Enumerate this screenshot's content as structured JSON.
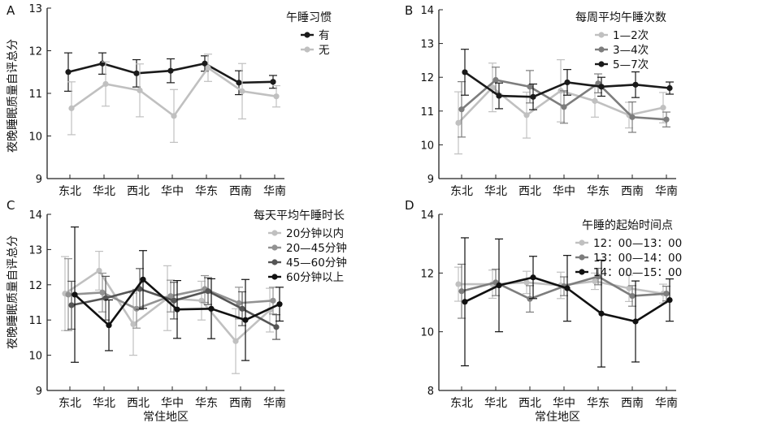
{
  "figure": {
    "y_axis_label": "夜晚睡眠质量自评总分",
    "x_axis_label": "常住地区"
  },
  "chart_data": [
    {
      "panel": "A",
      "type": "line",
      "legend_title": "午睡习惯",
      "categories": [
        "东北",
        "华北",
        "西北",
        "华中",
        "华东",
        "西南",
        "华南"
      ],
      "ylim": [
        9,
        13
      ],
      "yticks": [
        9,
        10,
        11,
        12,
        13
      ],
      "series": [
        {
          "name": "有",
          "color": "#1a1a1a",
          "values": [
            11.5,
            11.7,
            11.47,
            11.53,
            11.7,
            11.25,
            11.27
          ],
          "err": [
            0.45,
            0.25,
            0.32,
            0.28,
            0.18,
            0.28,
            0.15
          ]
        },
        {
          "name": "无",
          "color": "#c0c0c0",
          "values": [
            10.65,
            11.22,
            11.07,
            10.47,
            11.6,
            11.05,
            10.93
          ],
          "err": [
            0.62,
            0.52,
            0.62,
            0.62,
            0.32,
            0.65,
            0.25
          ]
        }
      ]
    },
    {
      "panel": "B",
      "type": "line",
      "legend_title": "每周平均午睡次数",
      "categories": [
        "东北",
        "华北",
        "西北",
        "华中",
        "华东",
        "西南",
        "华南"
      ],
      "ylim": [
        9,
        14
      ],
      "yticks": [
        9,
        10,
        11,
        12,
        13,
        14
      ],
      "series": [
        {
          "name": "1—2次",
          "color": "#c0c0c0",
          "values": [
            10.65,
            11.7,
            10.88,
            11.6,
            11.3,
            10.88,
            11.1
          ],
          "err": [
            0.92,
            0.72,
            0.68,
            0.92,
            0.48,
            0.38,
            0.45
          ]
        },
        {
          "name": "3—4次",
          "color": "#7d7d7d",
          "values": [
            11.05,
            11.92,
            11.72,
            11.12,
            11.82,
            10.82,
            10.75
          ],
          "err": [
            0.82,
            0.38,
            0.48,
            0.48,
            0.28,
            0.45,
            0.22
          ]
        },
        {
          "name": "5—7次",
          "color": "#1a1a1a",
          "values": [
            12.15,
            11.45,
            11.42,
            11.85,
            11.72,
            11.78,
            11.68
          ],
          "err": [
            0.68,
            0.38,
            0.38,
            0.38,
            0.28,
            0.38,
            0.18
          ]
        }
      ]
    },
    {
      "panel": "C",
      "type": "line",
      "legend_title": "每天平均午睡时长",
      "categories": [
        "东北",
        "华北",
        "西北",
        "华中",
        "华东",
        "西南",
        "华南"
      ],
      "ylim": [
        9,
        14
      ],
      "yticks": [
        9,
        10,
        11,
        12,
        13,
        14
      ],
      "series": [
        {
          "name": "20分钟以内",
          "color": "#c0c0c0",
          "values": [
            11.75,
            12.4,
            10.88,
            11.62,
            11.55,
            10.4,
            11.28
          ],
          "err": [
            1.05,
            0.55,
            0.88,
            0.92,
            0.55,
            0.92,
            0.62
          ]
        },
        {
          "name": "20—45分钟",
          "color": "#929292",
          "values": [
            11.72,
            11.78,
            11.32,
            11.68,
            11.88,
            11.48,
            11.55
          ],
          "err": [
            1.02,
            0.55,
            0.55,
            0.45,
            0.38,
            0.45,
            0.38
          ]
        },
        {
          "name": "45—60分钟",
          "color": "#555555",
          "values": [
            11.42,
            11.62,
            11.88,
            11.55,
            11.82,
            11.32,
            10.8
          ],
          "err": [
            0.68,
            0.62,
            0.58,
            0.52,
            0.38,
            0.48,
            0.35
          ]
        },
        {
          "name": "60分钟以上",
          "color": "#111111",
          "values": [
            11.72,
            10.85,
            12.15,
            11.3,
            11.32,
            11.0,
            11.45
          ],
          "err": [
            1.92,
            0.72,
            0.82,
            0.82,
            0.85,
            1.15,
            0.48
          ]
        }
      ]
    },
    {
      "panel": "D",
      "type": "line",
      "legend_title": "午睡的起始时间点",
      "categories": [
        "东北",
        "华北",
        "西北",
        "华中",
        "华东",
        "西南",
        "华南"
      ],
      "ylim": [
        8,
        14
      ],
      "yticks": [
        8,
        10,
        12,
        14
      ],
      "series": [
        {
          "name": "12：00—13：00",
          "color": "#c0c0c0",
          "values": [
            11.62,
            11.62,
            11.68,
            11.58,
            11.72,
            11.48,
            11.3
          ],
          "err": [
            0.58,
            0.48,
            0.38,
            0.45,
            0.28,
            0.45,
            0.32
          ]
        },
        {
          "name": "13：00—14：00",
          "color": "#7d7d7d",
          "values": [
            11.38,
            11.68,
            11.12,
            11.55,
            11.88,
            11.22,
            11.3
          ],
          "err": [
            0.92,
            0.45,
            0.45,
            0.32,
            0.28,
            0.35,
            0.25
          ]
        },
        {
          "name": "14：00—15：00",
          "color": "#111111",
          "values": [
            11.02,
            11.58,
            11.85,
            11.48,
            10.62,
            10.35,
            11.08
          ],
          "err": [
            2.18,
            1.58,
            0.72,
            1.12,
            1.82,
            1.38,
            0.72
          ]
        }
      ]
    }
  ]
}
